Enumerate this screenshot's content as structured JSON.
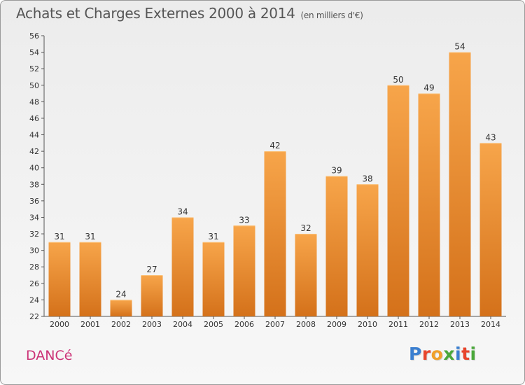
{
  "header": {
    "title": "Achats et Charges Externes 2000 à 2014",
    "subtitle": "(en milliers d'€)"
  },
  "footer": {
    "commune": "DANCé",
    "logo": {
      "letters": [
        {
          "char": "P",
          "color": "#3b7fd0"
        },
        {
          "char": "r",
          "color": "#e8452c"
        },
        {
          "char": "o",
          "color": "#f0a02a"
        },
        {
          "char": "x",
          "color": "#4aa83a"
        },
        {
          "char": "i",
          "color": "#3b7fd0"
        },
        {
          "char": "t",
          "color": "#e8452c"
        },
        {
          "char": "i",
          "color": "#4aa83a"
        }
      ]
    }
  },
  "chart_data": {
    "type": "bar",
    "title": "Achats et Charges Externes 2000 à 2014",
    "subtitle": "(en milliers d'€)",
    "categories": [
      "2000",
      "2001",
      "2002",
      "2003",
      "2004",
      "2005",
      "2006",
      "2007",
      "2008",
      "2009",
      "2010",
      "2011",
      "2012",
      "2013",
      "2014"
    ],
    "values": [
      31,
      31,
      24,
      27,
      34,
      31,
      33,
      42,
      32,
      39,
      38,
      50,
      49,
      54,
      43
    ],
    "ylim": [
      22,
      56
    ],
    "yticks": [
      22,
      24,
      26,
      28,
      30,
      32,
      34,
      36,
      38,
      40,
      42,
      44,
      46,
      48,
      50,
      52,
      54,
      56
    ],
    "grid": false,
    "bar_color_top": "#f7a54a",
    "bar_color_bottom": "#d4711a"
  }
}
